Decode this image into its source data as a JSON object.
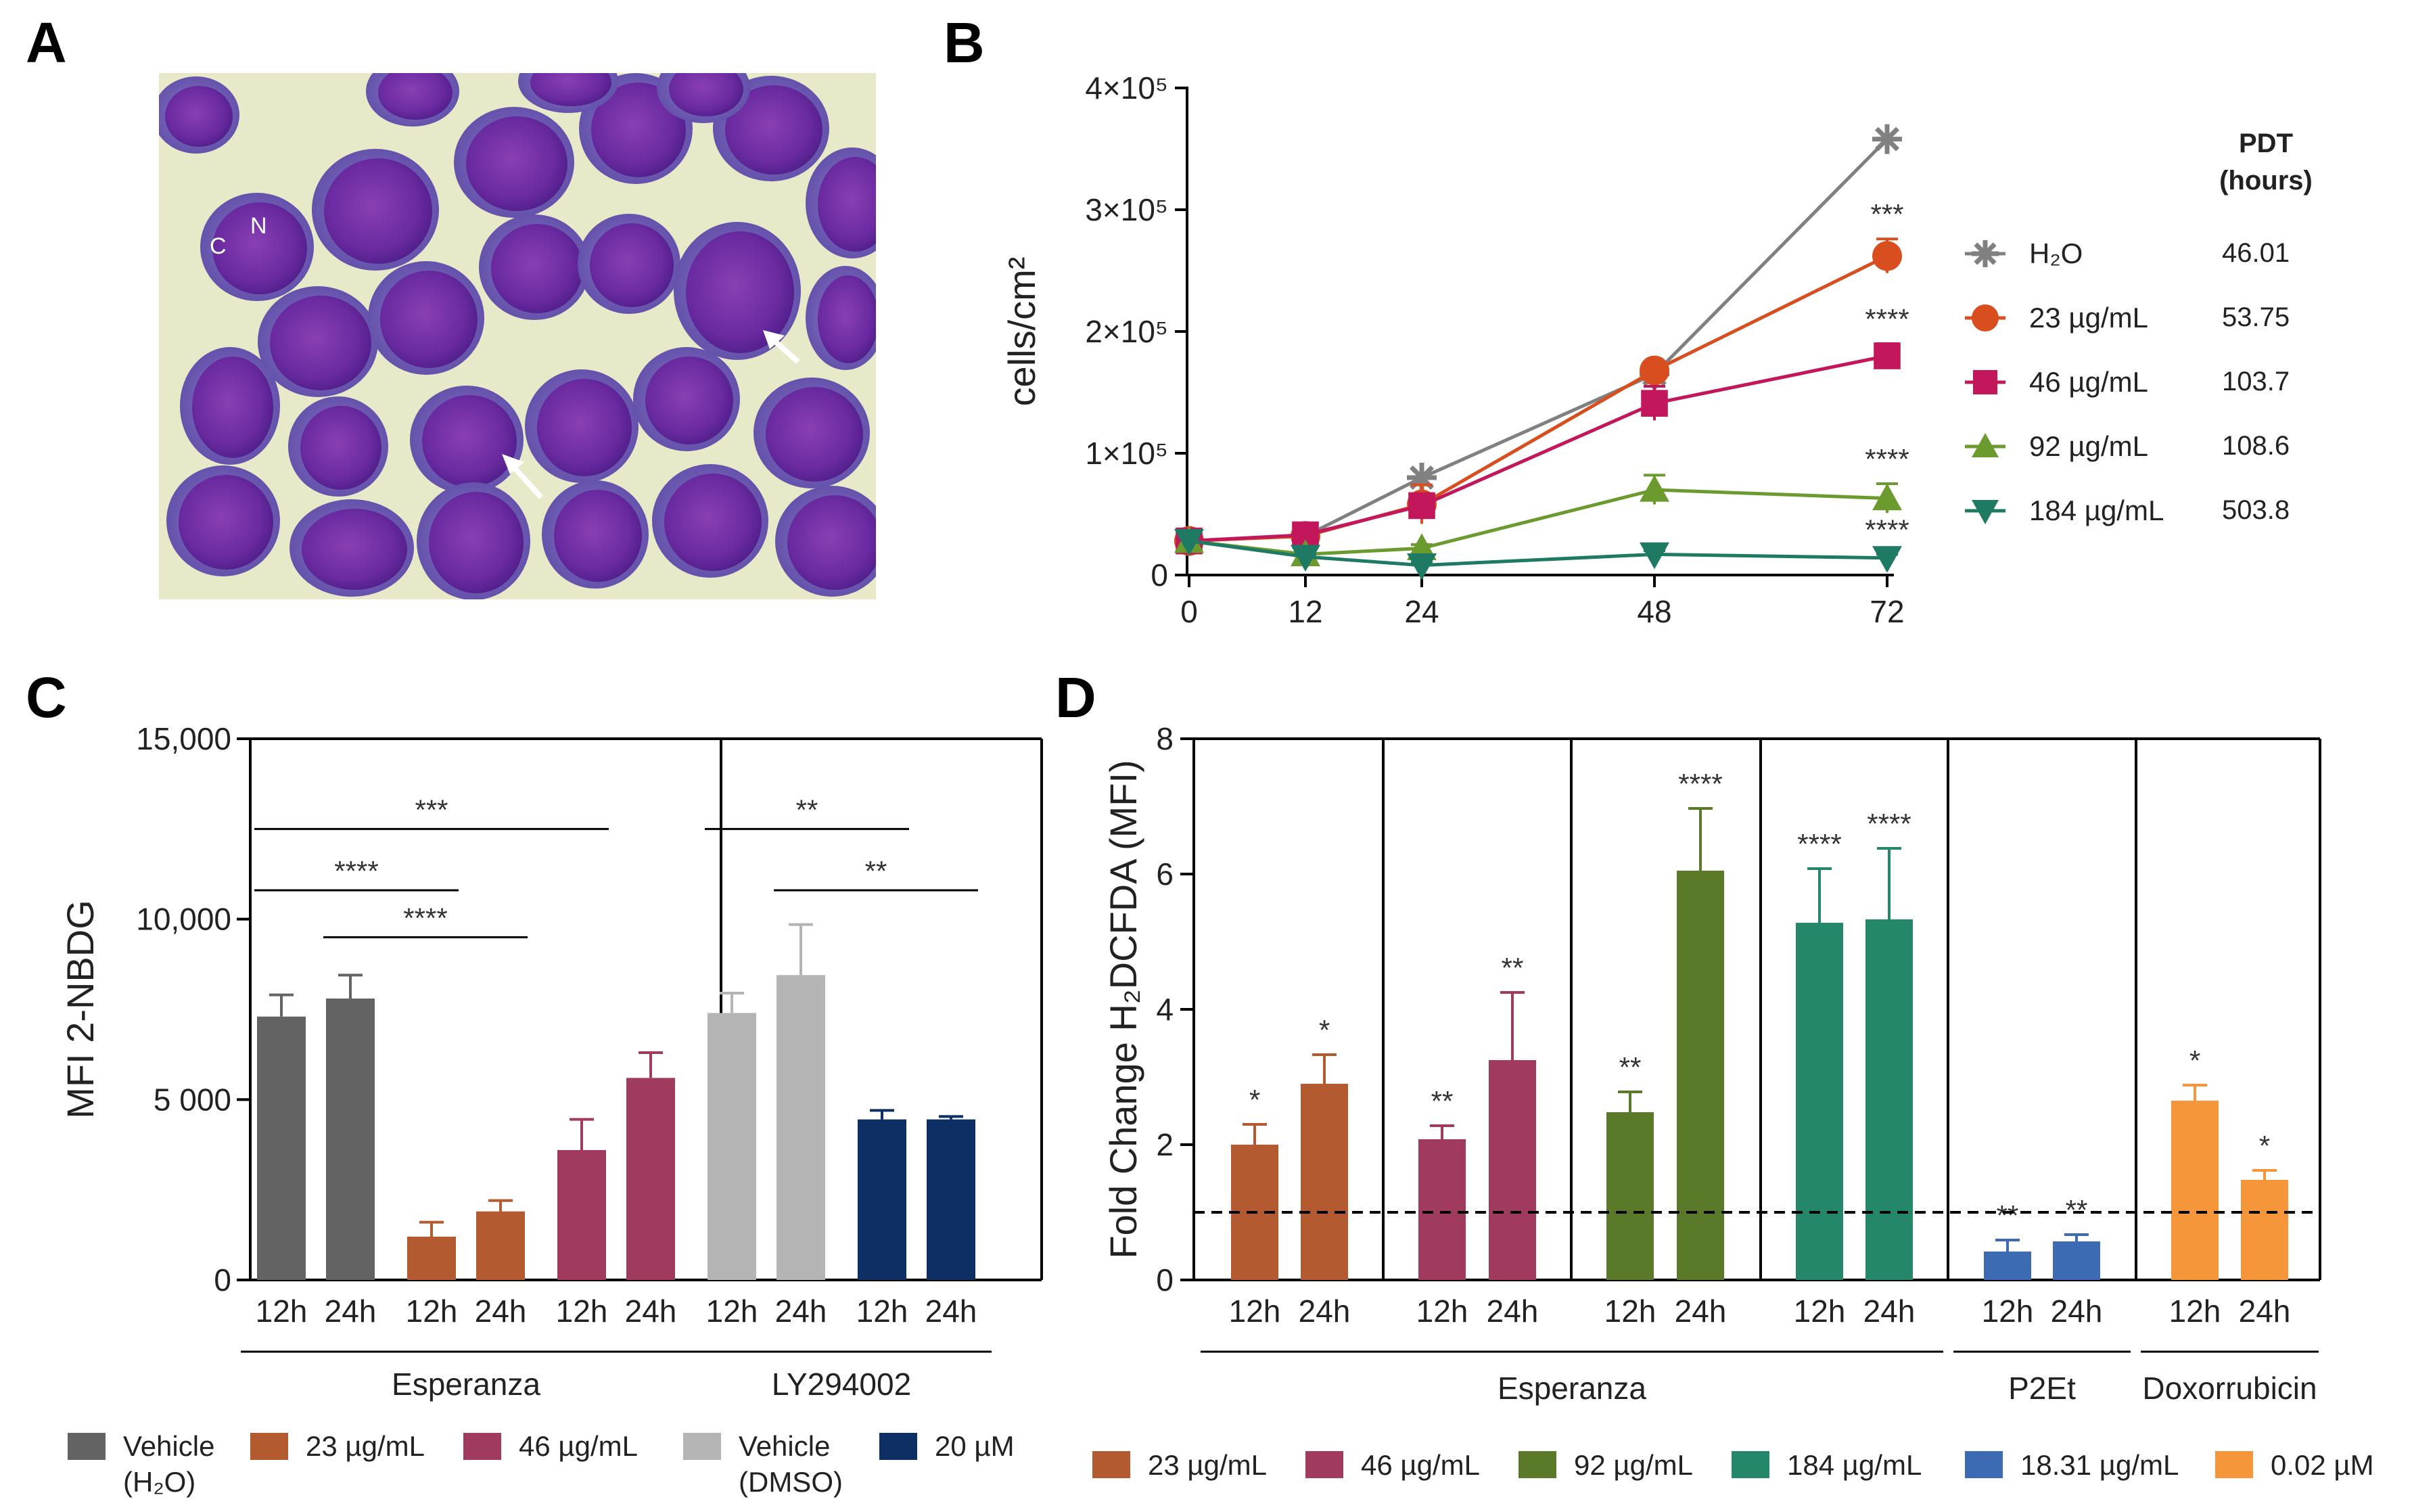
{
  "panels": {
    "A": "A",
    "B": "B",
    "C": "C",
    "D": "D"
  },
  "micrograph": {
    "labels": [
      "C",
      "N"
    ]
  },
  "chart_data": [
    {
      "panel": "B",
      "type": "line",
      "xlabel": "",
      "ylabel": "cells/cm²",
      "x": [
        0,
        12,
        24,
        48,
        72
      ],
      "xticks": [
        "0",
        "12",
        "24",
        "48",
        "72"
      ],
      "ylim": [
        0,
        400000
      ],
      "yticks": [
        {
          "value": 0,
          "label": "0"
        },
        {
          "value": 100000,
          "label": "1×10⁵"
        },
        {
          "value": 200000,
          "label": "2×10⁵"
        },
        {
          "value": 300000,
          "label": "3×10⁵"
        },
        {
          "value": 400000,
          "label": "4×10⁵"
        }
      ],
      "pdt_header": [
        "PDT",
        "(hours)"
      ],
      "series": [
        {
          "name": "H₂O",
          "color": "#808080",
          "marker": "asterisk",
          "values": [
            28000,
            32000,
            80000,
            165000,
            358000
          ],
          "errors": [
            0,
            0,
            0,
            0,
            0
          ],
          "pdt": "46.01",
          "stars": ""
        },
        {
          "name": "23 µg/mL",
          "color": "#d94e1f",
          "marker": "circle",
          "values": [
            28000,
            32000,
            58000,
            168000,
            262000
          ],
          "errors": [
            0,
            4000,
            16000,
            6000,
            14000
          ],
          "pdt": "53.75",
          "stars": "***"
        },
        {
          "name": "46 µg/mL",
          "color": "#c2185b",
          "marker": "square",
          "values": [
            28000,
            33000,
            57000,
            141000,
            180000
          ],
          "errors": [
            0,
            4000,
            6000,
            14000,
            10000
          ],
          "pdt": "103.7",
          "stars": "****"
        },
        {
          "name": "92 µg/mL",
          "color": "#6b9b2f",
          "marker": "triangle-up",
          "values": [
            28000,
            17000,
            22000,
            70000,
            63000
          ],
          "errors": [
            0,
            2000,
            3000,
            12000,
            12000
          ],
          "pdt": "108.6",
          "stars": "****"
        },
        {
          "name": "184 µg/mL",
          "color": "#1e7a62",
          "marker": "triangle-down",
          "values": [
            28000,
            15000,
            8000,
            17000,
            14000
          ],
          "errors": [
            0,
            2000,
            2000,
            3000,
            3000
          ],
          "pdt": "503.8",
          "stars": "****"
        }
      ]
    },
    {
      "panel": "C",
      "type": "bar",
      "ylabel": "MFI 2-NBDG",
      "ylim": [
        0,
        15000
      ],
      "yticks": [
        {
          "value": 0,
          "label": "0"
        },
        {
          "value": 5000,
          "label": "5 000"
        },
        {
          "value": 10000,
          "label": "10,000"
        },
        {
          "value": 15000,
          "label": "15,000"
        }
      ],
      "bars": [
        {
          "label": "12h",
          "value": 7300,
          "error": 600,
          "color": "#636363"
        },
        {
          "label": "24h",
          "value": 7800,
          "error": 650,
          "color": "#636363"
        },
        {
          "label": "12h",
          "value": 1200,
          "error": 400,
          "color": "#b35a30"
        },
        {
          "label": "24h",
          "value": 1900,
          "error": 300,
          "color": "#b35a30"
        },
        {
          "label": "12h",
          "value": 3600,
          "error": 850,
          "color": "#a03a5e"
        },
        {
          "label": "24h",
          "value": 5600,
          "error": 700,
          "color": "#a03a5e"
        },
        {
          "label": "12h",
          "value": 7400,
          "error": 550,
          "color": "#b4b4b4"
        },
        {
          "label": "24h",
          "value": 8450,
          "error": 1400,
          "color": "#b4b4b4"
        },
        {
          "label": "12h",
          "value": 4450,
          "error": 250,
          "color": "#0d2f63"
        },
        {
          "label": "24h",
          "value": 4450,
          "error": 80,
          "color": "#0d2f63"
        }
      ],
      "comparisons": [
        {
          "from": 0,
          "to": 4,
          "value": 12500,
          "stars": "***"
        },
        {
          "from": 0,
          "to": 2,
          "value": 10800,
          "stars": "****"
        },
        {
          "from": 1,
          "to": 3,
          "value": 9500,
          "stars": "****"
        },
        {
          "from": 6,
          "to": 8,
          "value": 12500,
          "stars": "**"
        },
        {
          "from": 7,
          "to": 9,
          "value": 10800,
          "stars": "**"
        }
      ],
      "groups": [
        {
          "label": "Esperanza",
          "from": 0,
          "to": 5
        },
        {
          "label": "LY294002",
          "from": 6,
          "to": 9
        }
      ],
      "legend": [
        {
          "label": "Vehicle",
          "label2": "(H₂O)",
          "color": "#636363"
        },
        {
          "label": "23 µg/mL",
          "label2": "",
          "color": "#b35a30"
        },
        {
          "label": "46 µg/mL",
          "label2": "",
          "color": "#a03a5e"
        },
        {
          "label": "Vehicle",
          "label2": "(DMSO)",
          "color": "#b4b4b4"
        },
        {
          "label": "20 µM",
          "label2": "",
          "color": "#0d2f63"
        }
      ]
    },
    {
      "panel": "D",
      "type": "bar",
      "ylabel": "Fold Change H₂DCFDA (MFI)",
      "ylim": [
        0,
        8
      ],
      "yticks": [
        {
          "value": 0,
          "label": "0"
        },
        {
          "value": 2,
          "label": "2"
        },
        {
          "value": 4,
          "label": "4"
        },
        {
          "value": 6,
          "label": "6"
        },
        {
          "value": 8,
          "label": "8"
        }
      ],
      "reference_line": 1,
      "bars": [
        {
          "label": "12h",
          "value": 2.0,
          "error": 0.3,
          "color": "#b35a30",
          "stars": "*"
        },
        {
          "label": "24h",
          "value": 2.9,
          "error": 0.43,
          "color": "#b35a30",
          "stars": "*"
        },
        {
          "label": "12h",
          "value": 2.08,
          "error": 0.2,
          "color": "#a03a5e",
          "stars": "**"
        },
        {
          "label": "24h",
          "value": 3.25,
          "error": 1.0,
          "color": "#a03a5e",
          "stars": "**"
        },
        {
          "label": "12h",
          "value": 2.48,
          "error": 0.3,
          "color": "#5a7a2a",
          "stars": "**"
        },
        {
          "label": "24h",
          "value": 6.05,
          "error": 0.92,
          "color": "#5a7a2a",
          "stars": "****"
        },
        {
          "label": "12h",
          "value": 5.28,
          "error": 0.8,
          "color": "#25876a",
          "stars": "****"
        },
        {
          "label": "24h",
          "value": 5.33,
          "error": 1.05,
          "color": "#25876a",
          "stars": "****"
        },
        {
          "label": "12h",
          "value": 0.42,
          "error": 0.17,
          "color": "#3d6bb3",
          "stars": "**"
        },
        {
          "label": "24h",
          "value": 0.57,
          "error": 0.1,
          "color": "#3d6bb3",
          "stars": "**"
        },
        {
          "label": "12h",
          "value": 2.65,
          "error": 0.23,
          "color": "#f5963a",
          "stars": "*"
        },
        {
          "label": "24h",
          "value": 1.48,
          "error": 0.14,
          "color": "#f5963a",
          "stars": "*"
        }
      ],
      "groups": [
        {
          "label": "Esperanza",
          "from": 0,
          "to": 7
        },
        {
          "label": "P2Et",
          "from": 8,
          "to": 9
        },
        {
          "label": "Doxorrubicin",
          "from": 10,
          "to": 11
        }
      ],
      "legend": [
        {
          "label": "23 µg/mL",
          "color": "#b35a30"
        },
        {
          "label": "46 µg/mL",
          "color": "#a03a5e"
        },
        {
          "label": "92 µg/mL",
          "color": "#5a7a2a"
        },
        {
          "label": "184 µg/mL",
          "color": "#25876a"
        },
        {
          "label": "18.31 µg/mL",
          "color": "#3d6bb3"
        },
        {
          "label": "0.02 µM",
          "color": "#f5963a"
        }
      ]
    }
  ]
}
